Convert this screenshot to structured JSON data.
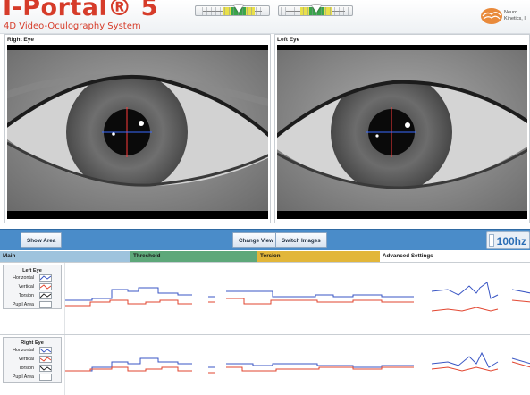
{
  "app": {
    "title": "I-Portal® 5",
    "subtitle": "4D Video-Oculography System",
    "logo_text": "Neuro\nKinetics, I"
  },
  "eyes": {
    "right_label": "Right Eye",
    "left_label": "Left Eye"
  },
  "toolbar": {
    "show_area": "Show Area",
    "change_view": "Change View",
    "switch_images": "Switch Images",
    "rate": "100hz"
  },
  "tabs": [
    {
      "label": "Main",
      "color": "#9ec3dd"
    },
    {
      "label": "Threshold",
      "color": "#5ea87a"
    },
    {
      "label": "Torsion",
      "color": "#e2b63a"
    },
    {
      "label": "Advanced Settings",
      "color": "#ffffff"
    }
  ],
  "graphs": [
    {
      "title": "Left Eye",
      "rows": [
        {
          "label": "Horizontal",
          "icon": "horizontal-trace-icon"
        },
        {
          "label": "Vertical",
          "icon": "vertical-trace-icon"
        },
        {
          "label": "Torsion",
          "icon": "torsion-trace-icon"
        },
        {
          "label": "Pupil Area",
          "icon": "pupil-area-icon"
        }
      ]
    },
    {
      "title": "Right Eye",
      "rows": [
        {
          "label": "Horizontal",
          "icon": "horizontal-trace-icon"
        },
        {
          "label": "Vertical",
          "icon": "vertical-trace-icon"
        },
        {
          "label": "Torsion",
          "icon": "torsion-trace-icon"
        },
        {
          "label": "Pupil Area",
          "icon": "pupil-area-icon"
        }
      ]
    }
  ],
  "colors": {
    "brand": "#d63c2a",
    "toolbar": "#4a8cc9",
    "horizontal_trace": "#3a56c4",
    "vertical_trace": "#e2452f"
  }
}
